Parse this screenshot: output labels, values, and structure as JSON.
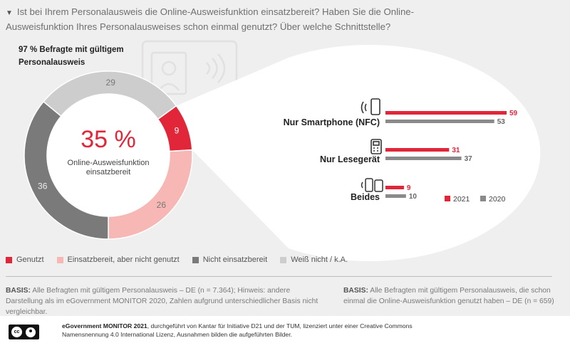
{
  "question": "Ist bei Ihrem Personalausweis die Online-Ausweisfunktion einsatzbereit? Haben Sie die Online-Ausweisfunktion Ihres Personalausweises schon einmal genutzt? Über welche Schnittstelle?",
  "respondents": "97 % Befragte mit gültigem Personalausweis",
  "center": {
    "value": "35 %",
    "label": "Online-Ausweisfunktion einsatzbereit"
  },
  "colors": {
    "genutzt": "#e1263a",
    "einsatzbereit": "#f6b7b5",
    "nicht": "#7a7a7a",
    "weiss": "#cdcdcd",
    "y2020": "#8a8a8a"
  },
  "chart_data": [
    {
      "type": "pie",
      "donut": true,
      "title": "",
      "categories": [
        "Genutzt",
        "Einsatzbereit, aber nicht genutzt",
        "Nicht einsatzbereit",
        "Weiß nicht / k.A."
      ],
      "values": [
        9,
        26,
        36,
        29
      ]
    },
    {
      "type": "bar",
      "orientation": "horizontal",
      "title": "",
      "categories": [
        "Nur Smartphone (NFC)",
        "Nur Lesegerät",
        "Beides"
      ],
      "icons": [
        "smartphone-nfc-icon",
        "card-reader-icon",
        "smartphone-and-reader-icon"
      ],
      "series": [
        {
          "name": "2021",
          "values": [
            59,
            31,
            9
          ]
        },
        {
          "name": "2020",
          "values": [
            53,
            37,
            10
          ]
        }
      ],
      "xlim": [
        0,
        59
      ],
      "legend": "bottom-right"
    }
  ],
  "legend": [
    {
      "label": "Genutzt",
      "color": "#e1263a"
    },
    {
      "label": "Einsatzbereit, aber nicht genutzt",
      "color": "#f6b7b5"
    },
    {
      "label": "Nicht einsatzbereit",
      "color": "#7a7a7a"
    },
    {
      "label": "Weiß nicht / k.A.",
      "color": "#cdcdcd"
    }
  ],
  "basis_left": {
    "label": "BASIS:",
    "text": "Alle Befragten mit gültigem Personalausweis – DE (n = 7.364); Hinweis: andere Darstellung als im eGovernment MONITOR 2020, Zahlen aufgrund unterschiedlicher Basis nicht vergleichbar."
  },
  "basis_right": {
    "label": "BASIS:",
    "text": "Alle Befragten mit gültigem Personalausweis, die schon einmal die Online-Ausweisfunktion genutzt haben – DE (n = 659)"
  },
  "footer": {
    "title": "eGovernment MONITOR 2021",
    "text": ", durchgeführt von Kantar für Initiative D21 und der TUM, lizenziert unter einer Creative Commons Namensnennung 4.0 International Lizenz, Ausnahmen bilden die aufgeführten Bilder.",
    "cc_label": "cc",
    "by_label": "BY"
  }
}
